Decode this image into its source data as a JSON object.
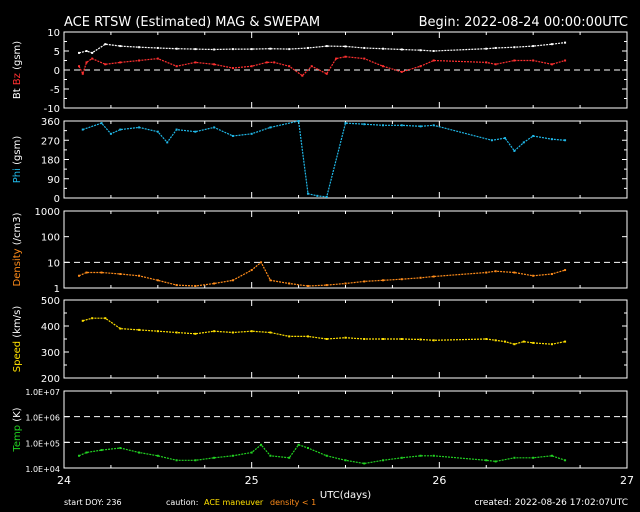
{
  "header": {
    "title": "ACE RTSW (Estimated) MAG & SWEPAM",
    "begin": "Begin: 2022-08-24 00:00:00UTC"
  },
  "footer": {
    "start_doy": "start DOY: 236",
    "caution_label": "caution:",
    "caution_maneuver": "ACE maneuver",
    "caution_density": "density < 1",
    "created": "created: 2022-08-26 17:02:07UTC"
  },
  "chart_data": [
    {
      "type": "scatter",
      "panel": "bt-bz",
      "ylabel_parts": [
        {
          "text": "Bt",
          "color": "#ffffff"
        },
        {
          "text": "Bz",
          "color": "#ff3030"
        },
        {
          "text": "(gsm)",
          "color": "#ffffff"
        }
      ],
      "ylim": [
        -10,
        10
      ],
      "yticks": [
        "-10",
        "-5",
        "0",
        "5",
        "10"
      ],
      "dashed_lines": [
        0
      ],
      "series": [
        {
          "name": "Bt",
          "color": "#ffffff",
          "x": [
            24.08,
            24.12,
            24.15,
            24.22,
            24.3,
            24.4,
            24.5,
            24.6,
            24.7,
            24.8,
            24.9,
            25.0,
            25.1,
            25.2,
            25.3,
            25.4,
            25.5,
            25.6,
            25.7,
            25.8,
            25.9,
            25.97,
            26.25,
            26.3,
            26.4,
            26.5,
            26.6,
            26.67
          ],
          "y": [
            4.5,
            5.0,
            4.5,
            6.8,
            6.3,
            6.0,
            5.8,
            5.6,
            5.5,
            5.4,
            5.5,
            5.5,
            5.6,
            5.5,
            5.8,
            6.3,
            6.2,
            5.8,
            5.6,
            5.4,
            5.2,
            5.0,
            5.6,
            5.8,
            6.0,
            6.3,
            6.8,
            7.2
          ]
        },
        {
          "name": "Bz",
          "color": "#ff3030",
          "x": [
            24.08,
            24.1,
            24.12,
            24.15,
            24.22,
            24.3,
            24.4,
            24.5,
            24.6,
            24.7,
            24.8,
            24.9,
            25.0,
            25.08,
            25.12,
            25.2,
            25.27,
            25.32,
            25.4,
            25.45,
            25.5,
            25.6,
            25.7,
            25.8,
            25.9,
            25.97,
            26.25,
            26.3,
            26.4,
            26.5,
            26.6,
            26.67
          ],
          "y": [
            1.0,
            -1.0,
            2.0,
            3.0,
            1.5,
            2.0,
            2.5,
            3.0,
            1.0,
            2.0,
            1.5,
            0.5,
            1.0,
            2.0,
            2.0,
            1.0,
            -1.5,
            1.0,
            -1.0,
            3.0,
            3.5,
            3.0,
            1.0,
            -0.5,
            1.0,
            2.5,
            2.0,
            1.5,
            2.5,
            2.5,
            1.5,
            2.5
          ]
        }
      ]
    },
    {
      "type": "scatter",
      "panel": "phi",
      "ylabel_parts": [
        {
          "text": "Phi",
          "color": "#20b8e8"
        },
        {
          "text": "(gsm)",
          "color": "#ffffff"
        }
      ],
      "ylim": [
        0,
        360
      ],
      "yticks": [
        "0",
        "90",
        "180",
        "270",
        "360"
      ],
      "series": [
        {
          "name": "Phi",
          "color": "#20b8e8",
          "x": [
            24.1,
            24.2,
            24.25,
            24.3,
            24.4,
            24.5,
            24.55,
            24.6,
            24.7,
            24.8,
            24.9,
            25.0,
            25.1,
            25.25,
            25.3,
            25.35,
            25.4,
            25.5,
            25.6,
            25.7,
            25.8,
            25.9,
            25.97,
            26.28,
            26.35,
            26.4,
            26.45,
            26.5,
            26.6,
            26.67
          ],
          "y": [
            320,
            350,
            300,
            320,
            330,
            310,
            260,
            320,
            310,
            330,
            290,
            300,
            330,
            360,
            20,
            10,
            5,
            350,
            345,
            340,
            340,
            335,
            340,
            270,
            280,
            220,
            260,
            290,
            275,
            270
          ]
        }
      ]
    },
    {
      "type": "scatter",
      "panel": "density",
      "ylabel_parts": [
        {
          "text": "Density",
          "color": "#ff8c1a"
        },
        {
          "text": "(/cm3)",
          "color": "#ffffff"
        }
      ],
      "yscale": "log",
      "ylim": [
        1,
        1000
      ],
      "yticks": [
        "1",
        "10",
        "100",
        "1000"
      ],
      "dashed_lines": [
        10
      ],
      "series": [
        {
          "name": "Density",
          "color": "#ff8c1a",
          "x": [
            24.08,
            24.12,
            24.2,
            24.3,
            24.4,
            24.5,
            24.6,
            24.7,
            24.8,
            24.9,
            25.0,
            25.05,
            25.1,
            25.2,
            25.3,
            25.4,
            25.5,
            25.6,
            25.7,
            25.8,
            25.9,
            25.97,
            26.25,
            26.3,
            26.4,
            26.5,
            26.6,
            26.67
          ],
          "y": [
            3,
            4,
            4,
            3.5,
            3,
            2,
            1.3,
            1.2,
            1.5,
            2,
            5,
            10,
            2,
            1.5,
            1.2,
            1.3,
            1.5,
            1.8,
            2,
            2.2,
            2.5,
            2.8,
            4,
            4.5,
            4,
            3,
            3.5,
            5
          ]
        }
      ]
    },
    {
      "type": "scatter",
      "panel": "speed",
      "ylabel_parts": [
        {
          "text": "Speed",
          "color": "#ffe000"
        },
        {
          "text": "(km/s)",
          "color": "#ffffff"
        }
      ],
      "ylim": [
        200,
        500
      ],
      "yticks": [
        "200",
        "300",
        "400",
        "500"
      ],
      "series": [
        {
          "name": "Speed",
          "color": "#ffe000",
          "x": [
            24.1,
            24.15,
            24.22,
            24.3,
            24.4,
            24.5,
            24.6,
            24.7,
            24.8,
            24.9,
            25.0,
            25.1,
            25.2,
            25.3,
            25.4,
            25.5,
            25.6,
            25.7,
            25.8,
            25.9,
            25.97,
            26.25,
            26.3,
            26.35,
            26.4,
            26.45,
            26.5,
            26.6,
            26.67
          ],
          "y": [
            420,
            430,
            430,
            390,
            385,
            380,
            375,
            370,
            380,
            375,
            380,
            375,
            360,
            360,
            350,
            355,
            350,
            350,
            350,
            348,
            345,
            350,
            345,
            340,
            330,
            340,
            335,
            330,
            340
          ]
        }
      ]
    },
    {
      "type": "scatter",
      "panel": "temp",
      "ylabel_parts": [
        {
          "text": "Temp",
          "color": "#22d322"
        },
        {
          "text": "(K)",
          "color": "#ffffff"
        }
      ],
      "xlabel": "UTC(days)",
      "yscale": "log",
      "ylim": [
        10000,
        10000000
      ],
      "yticks": [
        "1.0E+04",
        "1.0E+05",
        "1.0E+06",
        "1.0E+07"
      ],
      "dashed_lines": [
        100000,
        1000000
      ],
      "xlim": [
        24,
        27
      ],
      "xticks": [
        "24",
        "25",
        "26",
        "27"
      ],
      "series": [
        {
          "name": "Temp",
          "color": "#22d322",
          "x": [
            24.08,
            24.12,
            24.2,
            24.3,
            24.4,
            24.5,
            24.6,
            24.7,
            24.8,
            24.9,
            25.0,
            25.05,
            25.1,
            25.2,
            25.25,
            25.3,
            25.4,
            25.5,
            25.6,
            25.7,
            25.8,
            25.9,
            25.97,
            26.25,
            26.3,
            26.4,
            26.5,
            26.6,
            26.67
          ],
          "y": [
            30000,
            40000,
            50000,
            60000,
            40000,
            30000,
            20000,
            20000,
            25000,
            30000,
            40000,
            80000,
            30000,
            25000,
            80000,
            60000,
            30000,
            20000,
            15000,
            20000,
            25000,
            30000,
            30000,
            20000,
            18000,
            25000,
            25000,
            30000,
            20000
          ]
        }
      ]
    }
  ]
}
